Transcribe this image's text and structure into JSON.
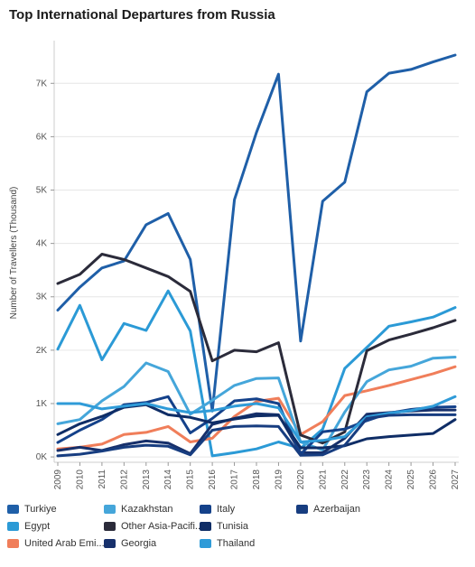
{
  "chart_data": {
    "type": "line",
    "title": "Top International Departures from Russia",
    "xlabel": "",
    "ylabel": "Number of Travellers (Thousand)",
    "x": [
      "2009",
      "2010",
      "2011",
      "2012",
      "2013",
      "2014",
      "2015",
      "2016",
      "2017",
      "2018",
      "2019",
      "2020",
      "2021",
      "2022",
      "2023",
      "2024",
      "2025",
      "2026",
      "2027"
    ],
    "ylim": [
      -100,
      7800
    ],
    "yticks": [
      0,
      1000,
      2000,
      3000,
      4000,
      5000,
      6000,
      7000
    ],
    "ytick_labels": [
      "0K",
      "1K",
      "2K",
      "3K",
      "4K",
      "5K",
      "6K",
      "7K"
    ],
    "grid": true,
    "legend_position": "bottom",
    "series": [
      {
        "name": "Turkiye",
        "color": "#1f5fa8",
        "values": [
          2750,
          3180,
          3540,
          3670,
          4350,
          4560,
          3700,
          860,
          4820,
          6080,
          7170,
          2170,
          4790,
          5150,
          6840,
          7190,
          7260,
          7400,
          7530
        ]
      },
      {
        "name": "Egypt",
        "color": "#2b9ad6",
        "values": [
          2020,
          2840,
          1820,
          2500,
          2370,
          3110,
          2360,
          20,
          80,
          150,
          280,
          160,
          520,
          1660,
          2050,
          2450,
          2530,
          2620,
          2800
        ]
      },
      {
        "name": "United Arab Emi...",
        "color": "#f07e5a",
        "values": [
          150,
          180,
          240,
          420,
          460,
          570,
          280,
          350,
          760,
          1040,
          1100,
          420,
          660,
          1150,
          1240,
          1340,
          1450,
          1560,
          1690
        ]
      },
      {
        "name": "Kazakhstan",
        "color": "#45a6da",
        "values": [
          620,
          700,
          1050,
          1320,
          1760,
          1600,
          800,
          1060,
          1340,
          1470,
          1480,
          280,
          130,
          840,
          1410,
          1630,
          1700,
          1850,
          1870
        ]
      },
      {
        "name": "Other Asia-Pacifi...",
        "color": "#2b2b3a",
        "values": [
          3250,
          3420,
          3800,
          3700,
          3540,
          3380,
          3100,
          1800,
          2000,
          1970,
          2140,
          410,
          260,
          470,
          1990,
          2190,
          2300,
          2420,
          2560
        ]
      },
      {
        "name": "Georgia",
        "color": "#17306b",
        "values": [
          120,
          180,
          120,
          230,
          300,
          260,
          60,
          610,
          720,
          810,
          790,
          80,
          80,
          350,
          800,
          830,
          860,
          880,
          880
        ]
      },
      {
        "name": "Italy",
        "color": "#14418a",
        "values": [
          270,
          500,
          700,
          980,
          1020,
          1130,
          450,
          720,
          1050,
          1090,
          1000,
          50,
          470,
          520,
          680,
          820,
          890,
          930,
          940
        ]
      },
      {
        "name": "Tunisia",
        "color": "#0f2d66",
        "values": [
          420,
          620,
          760,
          930,
          980,
          790,
          740,
          640,
          710,
          770,
          780,
          170,
          170,
          210,
          340,
          380,
          410,
          440,
          700
        ]
      },
      {
        "name": "Thailand",
        "color": "#2f9bd8",
        "values": [
          1000,
          1000,
          900,
          950,
          1000,
          900,
          830,
          870,
          950,
          1000,
          920,
          280,
          310,
          380,
          750,
          820,
          870,
          950,
          1130
        ]
      },
      {
        "name": "Azerbaijan",
        "color": "#173d80",
        "values": [
          20,
          50,
          110,
          180,
          220,
          200,
          40,
          500,
          570,
          580,
          570,
          30,
          40,
          220,
          720,
          780,
          790,
          790,
          790
        ]
      }
    ]
  }
}
